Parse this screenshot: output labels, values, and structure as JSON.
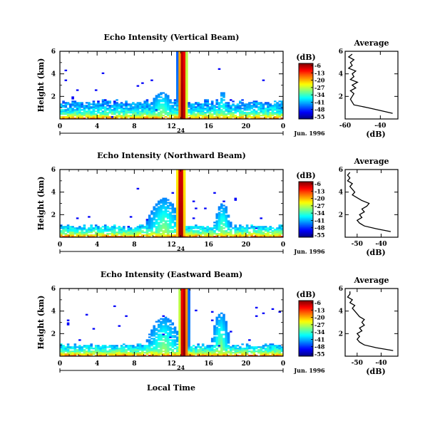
{
  "figure": {
    "x_axis_label": "Local Time",
    "date_label": "Jun. 1996",
    "colorbar_unit": "(dB)"
  },
  "chart_data": [
    {
      "type": "heatmap",
      "panel": "vertical",
      "title": "Echo Intensity (Vertical Beam)",
      "ylabel": "Height (km)",
      "xlabel": "",
      "xlim": [
        0,
        24
      ],
      "ylim": [
        0,
        6
      ],
      "x_ticks": [
        "0",
        "4",
        "8",
        "12",
        "16",
        "20",
        "0"
      ],
      "y_ticks": [
        "6",
        "4",
        "2"
      ],
      "day_marker": "24",
      "date": "Jun. 1996",
      "colorbar": {
        "label": "(dB)",
        "ticks": [
          "-6",
          "-13",
          "-20",
          "-27",
          "-34",
          "-41",
          "-48",
          "-55"
        ],
        "range": [
          -55,
          -6
        ]
      },
      "features": {
        "boundary_layer_top_km": 1.5,
        "rain_column": {
          "center_hour": 13.2,
          "width_hours": 0.6,
          "peak_db": -6
        },
        "convective_plumes": [
          {
            "center_hour": 11.0,
            "top_km": 2.4,
            "width_hours": 1.5
          },
          {
            "center_hour": 17.5,
            "top_km": 2.5,
            "width_hours": 0.5
          },
          {
            "center_hour": 20.5,
            "top_km": 1.2,
            "width_hours": 1.5
          }
        ]
      },
      "profile": {
        "title": "Average",
        "xlabel": "(dB)",
        "x_ticks": [
          "-60",
          "-40"
        ],
        "y_ticks": [
          "6",
          "4",
          "2"
        ],
        "xlim": [
          -60,
          -30
        ],
        "ylim": [
          0,
          6
        ],
        "height_km": [
          0.5,
          0.75,
          1.0,
          1.25,
          1.5,
          1.75,
          2.0,
          2.25,
          2.5,
          2.75,
          3.0,
          3.25,
          3.5,
          3.75,
          4.0,
          4.25,
          4.5,
          4.75,
          5.0,
          5.25,
          5.5,
          5.75
        ],
        "db": [
          -33,
          -40,
          -47,
          -55,
          -56,
          -57,
          -56,
          -55,
          -57,
          -54,
          -56,
          -53,
          -57,
          -55,
          -56,
          -54,
          -58,
          -56,
          -57,
          -55,
          -58,
          -56
        ]
      }
    },
    {
      "type": "heatmap",
      "panel": "northward",
      "title": "Echo Intensity (Northward Beam)",
      "ylabel": "Height (km)",
      "xlabel": "",
      "xlim": [
        0,
        24
      ],
      "ylim": [
        0,
        6
      ],
      "x_ticks": [
        "0",
        "4",
        "8",
        "12",
        "16",
        "20",
        "0"
      ],
      "y_ticks": [
        "6",
        "4",
        "2"
      ],
      "day_marker": "24",
      "date": "Jun. 1996",
      "colorbar": {
        "label": "(dB)",
        "ticks": [
          "-6",
          "-13",
          "-20",
          "-27",
          "-34",
          "-41",
          "-48",
          "-55"
        ],
        "range": [
          -55,
          -6
        ]
      },
      "features": {
        "boundary_layer_top_km": 1.0,
        "rain_column": {
          "center_hour": 13.0,
          "width_hours": 0.6,
          "peak_db": -6
        },
        "convective_plumes": [
          {
            "center_hour": 11.2,
            "top_km": 3.5,
            "width_hours": 2.0
          },
          {
            "center_hour": 17.5,
            "top_km": 3.0,
            "width_hours": 1.0
          }
        ]
      },
      "profile": {
        "title": "Average",
        "xlabel": "(dB)",
        "x_ticks": [
          "-50",
          "-40"
        ],
        "y_ticks": [
          "6",
          "4",
          "2"
        ],
        "xlim": [
          -55,
          -33
        ],
        "ylim": [
          0,
          6
        ],
        "height_km": [
          0.5,
          0.75,
          1.0,
          1.25,
          1.5,
          1.75,
          2.0,
          2.25,
          2.5,
          2.75,
          3.0,
          3.25,
          3.5,
          3.75,
          4.0,
          4.25,
          4.5,
          4.75,
          5.0,
          5.25,
          5.5,
          5.75
        ],
        "db": [
          -36,
          -42,
          -47,
          -49,
          -50,
          -48,
          -49,
          -47,
          -48,
          -46,
          -45,
          -48,
          -50,
          -52,
          -51,
          -52,
          -53,
          -52,
          -54,
          -53,
          -54,
          -53
        ]
      }
    },
    {
      "type": "heatmap",
      "panel": "eastward",
      "title": "Echo Intensity (Eastward Beam)",
      "ylabel": "Height (km)",
      "xlabel": "Local Time",
      "xlim": [
        0,
        24
      ],
      "ylim": [
        0,
        6
      ],
      "x_ticks": [
        "0",
        "4",
        "8",
        "12",
        "16",
        "20",
        "0"
      ],
      "y_ticks": [
        "6",
        "4",
        "2"
      ],
      "day_marker": "24",
      "date": "Jun. 1996",
      "colorbar": {
        "label": "(dB)",
        "ticks": [
          "-6",
          "-13",
          "-20",
          "-27",
          "-34",
          "-41",
          "-48",
          "-55"
        ],
        "range": [
          -55,
          -6
        ]
      },
      "features": {
        "boundary_layer_top_km": 1.0,
        "rain_column": {
          "center_hour": 13.3,
          "width_hours": 0.6,
          "peak_db": -6
        },
        "convective_plumes": [
          {
            "center_hour": 11.2,
            "top_km": 3.5,
            "width_hours": 2.0
          },
          {
            "center_hour": 17.3,
            "top_km": 4.0,
            "width_hours": 1.0
          }
        ]
      },
      "profile": {
        "title": "Average",
        "xlabel": "(dB)",
        "x_ticks": [
          "-50",
          "-40"
        ],
        "y_ticks": [
          "6",
          "4",
          "2"
        ],
        "xlim": [
          -55,
          -33
        ],
        "ylim": [
          0,
          6
        ],
        "height_km": [
          0.5,
          0.75,
          1.0,
          1.25,
          1.5,
          1.75,
          2.0,
          2.25,
          2.5,
          2.75,
          3.0,
          3.25,
          3.5,
          3.75,
          4.0,
          4.25,
          4.5,
          4.75,
          5.0,
          5.25,
          5.5,
          5.75
        ],
        "db": [
          -35,
          -42,
          -47,
          -49,
          -50,
          -49,
          -50,
          -48,
          -49,
          -47,
          -48,
          -47,
          -49,
          -50,
          -51,
          -52,
          -51,
          -53,
          -52,
          -54,
          -53,
          -53
        ]
      }
    }
  ]
}
